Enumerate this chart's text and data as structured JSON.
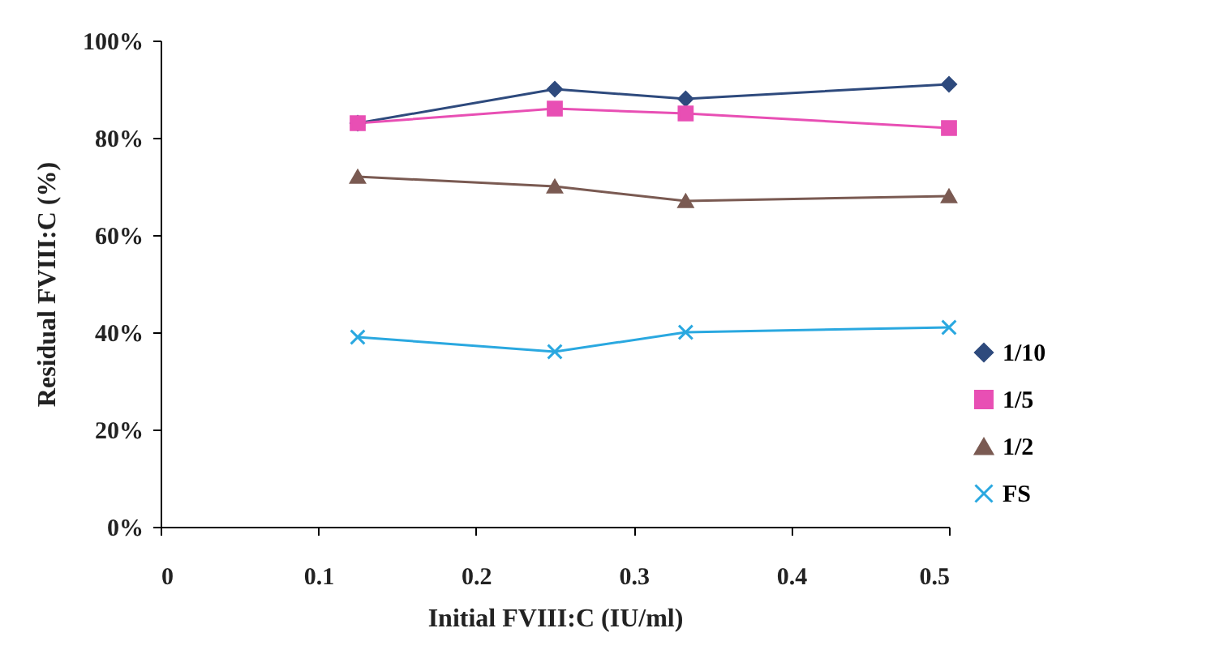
{
  "chart_data": {
    "type": "line",
    "xlabel": "Initial FVIII:C (IU/ml)",
    "ylabel": "Residual FVIII:C (%)",
    "x": [
      0.125,
      0.25,
      0.333,
      0.5
    ],
    "series": [
      {
        "name": "1/10",
        "color": "#2e4a7d",
        "marker": "diamond",
        "values": [
          83,
          90,
          88,
          91
        ]
      },
      {
        "name": "1/5",
        "color": "#e84fb4",
        "marker": "square",
        "values": [
          83,
          86,
          85,
          82
        ]
      },
      {
        "name": "1/2",
        "color": "#7a5a52",
        "marker": "triangle",
        "values": [
          72,
          70,
          67,
          68
        ]
      },
      {
        "name": "FS",
        "color": "#2aa8e0",
        "marker": "cross",
        "values": [
          39,
          36,
          40,
          41
        ]
      }
    ],
    "xlim": [
      0,
      0.5
    ],
    "xticks": [
      0,
      0.1,
      0.2,
      0.3,
      0.4,
      0.5
    ],
    "ylim": [
      0,
      100
    ],
    "yticks": [
      {
        "value": 0,
        "label": "0%"
      },
      {
        "value": 20,
        "label": "20%"
      },
      {
        "value": 40,
        "label": "40%"
      },
      {
        "value": 60,
        "label": "60%"
      },
      {
        "value": 80,
        "label": "80%"
      },
      {
        "value": 100,
        "label": "100%"
      }
    ],
    "grid": false,
    "legend": "right",
    "line_style": "solid"
  }
}
